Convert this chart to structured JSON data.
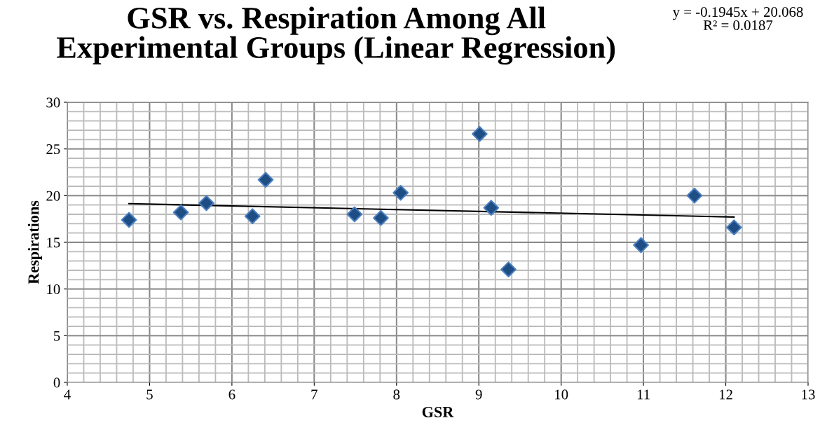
{
  "chart_data": {
    "type": "scatter",
    "title": "GSR vs. Respiration Among All\nExperimental Groups (Linear Regression)",
    "xlabel": "GSR",
    "ylabel": "Respirations",
    "annotations": [
      "y = -0.1945x + 20.068\nR² = 0.0187"
    ],
    "series": [
      {
        "color": "#1f4e85",
        "marker": "diamond",
        "x": [
          4.75,
          5.38,
          5.69,
          6.25,
          6.41,
          7.49,
          7.81,
          8.05,
          9.01,
          9.15,
          9.36,
          10.97,
          11.62,
          12.1
        ],
        "values": [
          17.4,
          18.2,
          19.2,
          17.8,
          21.7,
          18.0,
          17.6,
          20.3,
          26.6,
          18.7,
          12.1,
          14.7,
          20.0,
          16.6
        ]
      },
      {
        "type": "line",
        "color": "#000000",
        "marker": "none",
        "x": [
          4.75,
          12.1
        ],
        "values": [
          19.14,
          17.71
        ]
      }
    ],
    "xlim": [
      4,
      13
    ],
    "xticks": [
      4,
      5,
      6,
      7,
      8,
      9,
      10,
      11,
      12,
      13
    ],
    "ylim": [
      0,
      30
    ],
    "yticks": [
      0,
      5,
      10,
      15,
      20,
      25,
      30
    ],
    "grid": true
  }
}
